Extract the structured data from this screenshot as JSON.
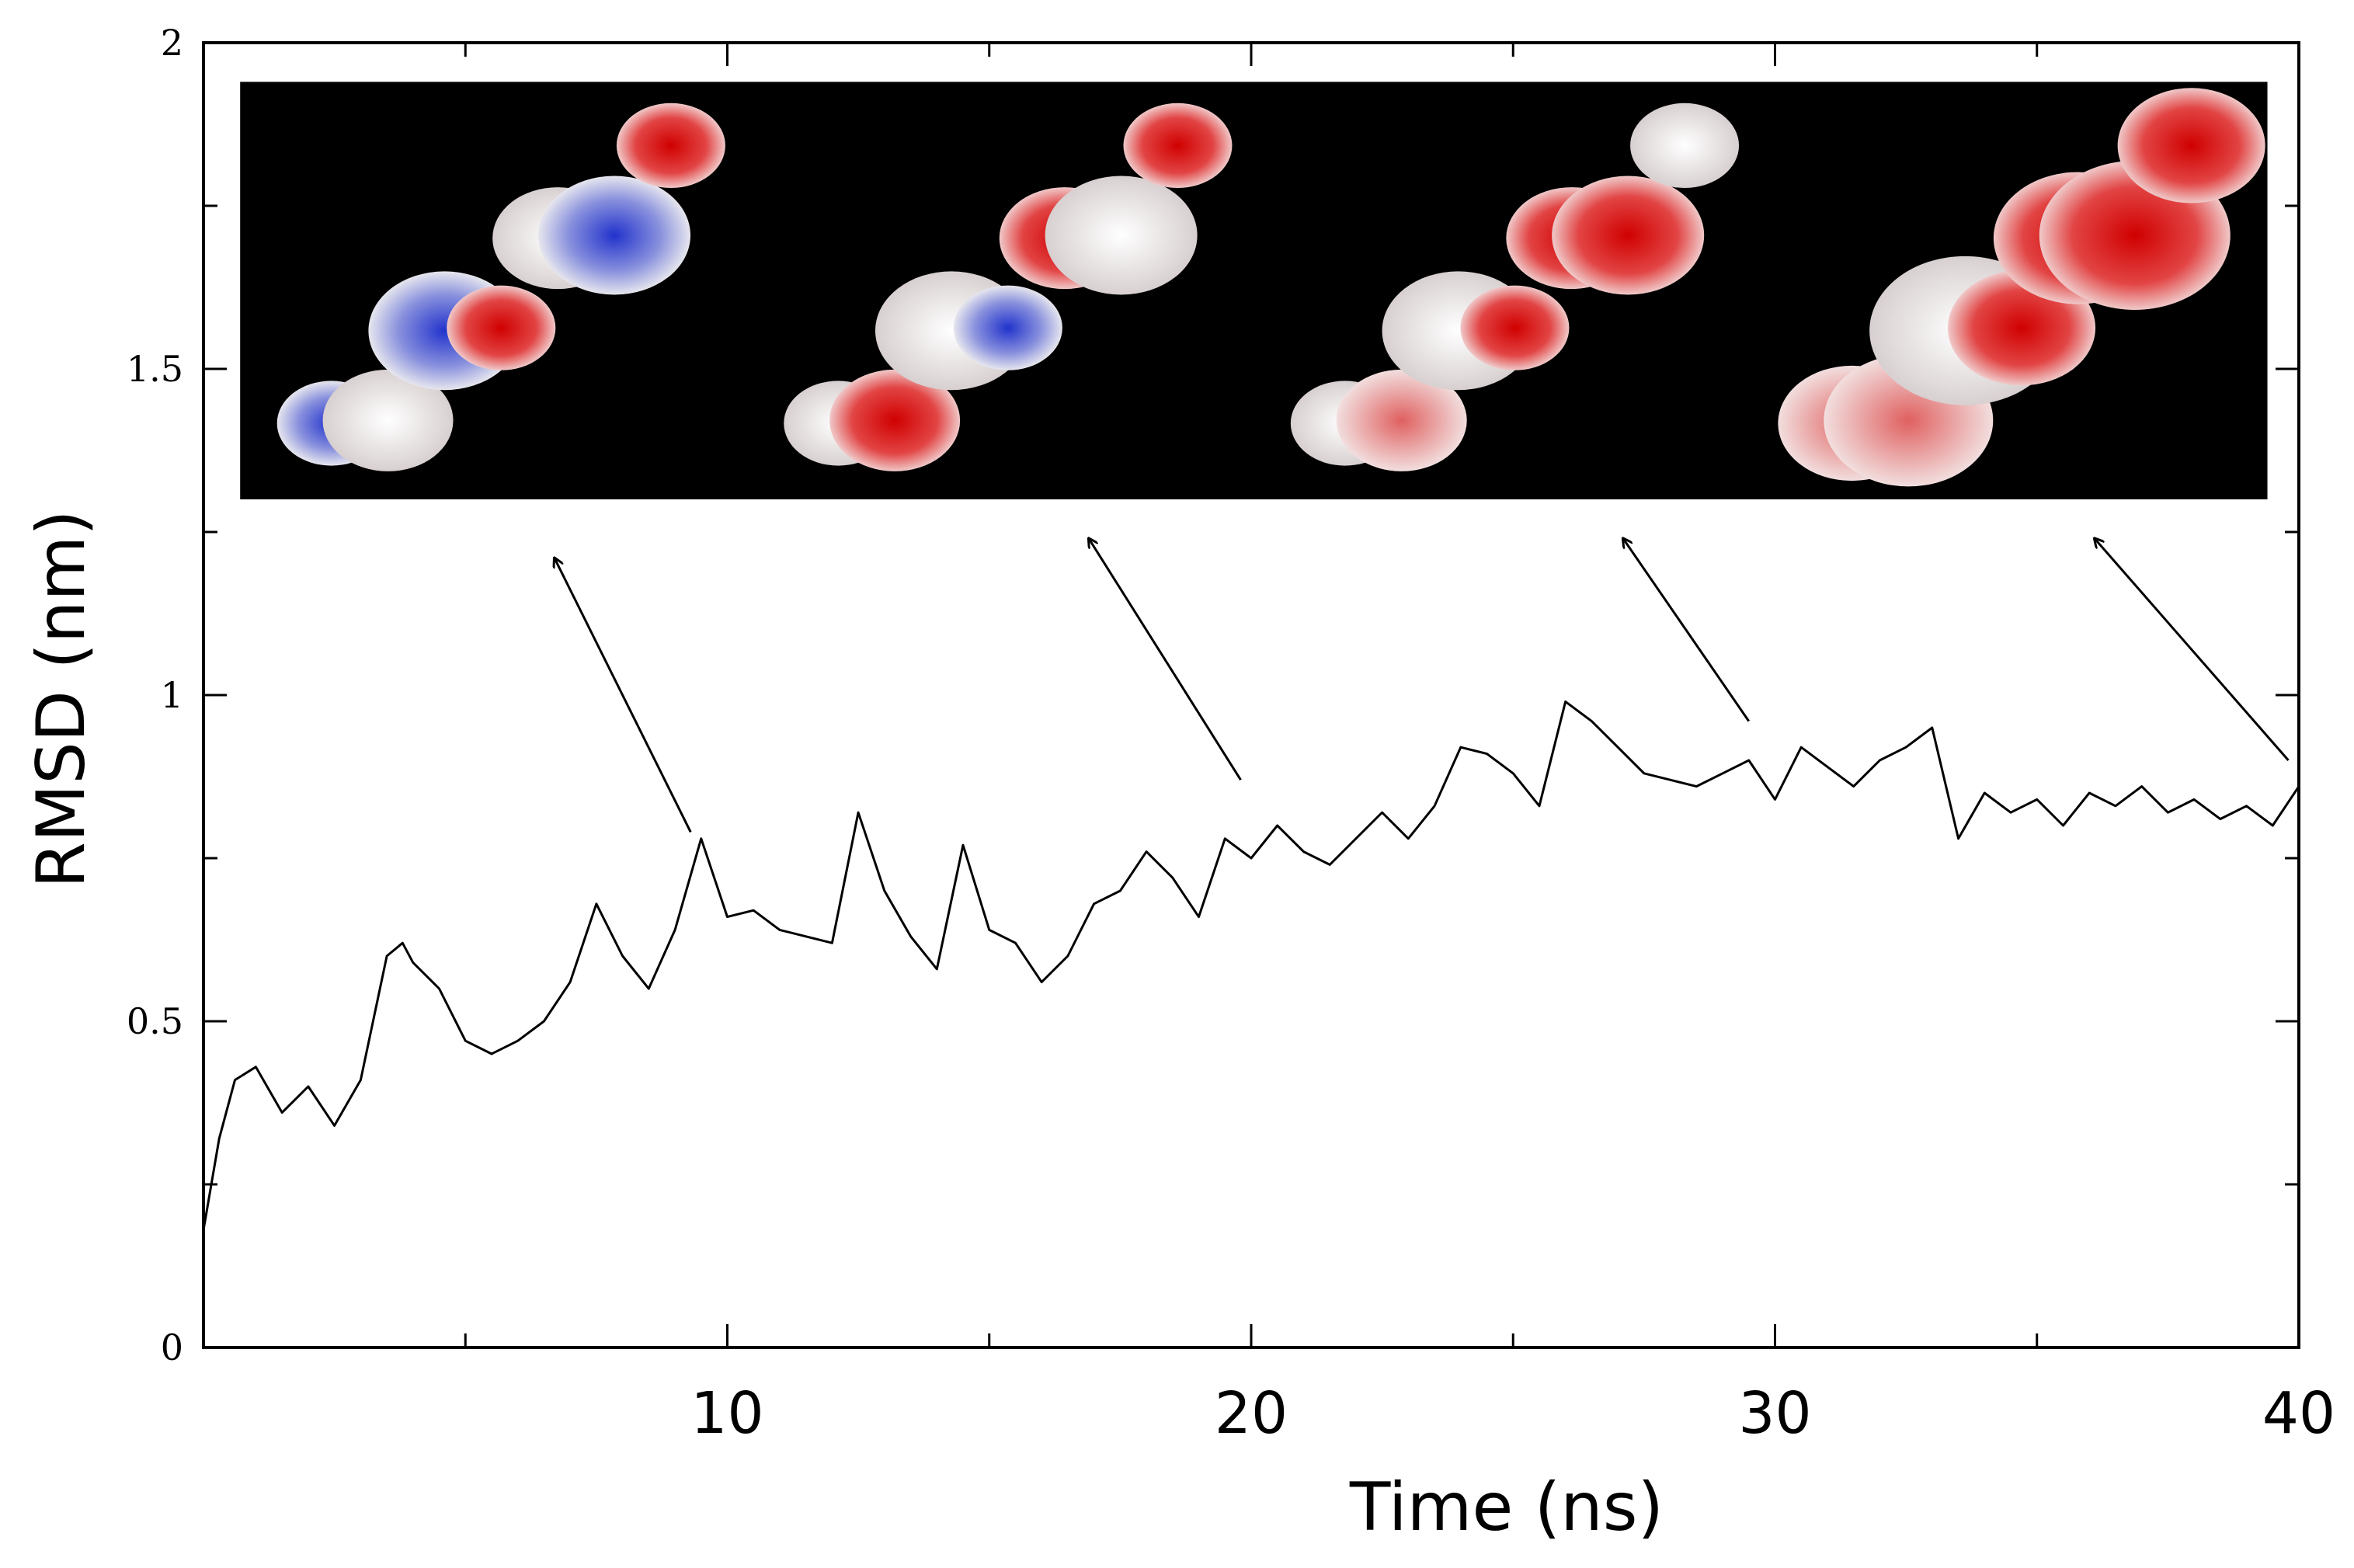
{
  "chart_data": {
    "type": "line",
    "title": "",
    "xlabel": "Time (ns)",
    "ylabel": "RMSD (nm)",
    "xlim": [
      0,
      40
    ],
    "ylim": [
      0,
      2
    ],
    "x_ticks": [
      10,
      20,
      30,
      40
    ],
    "y_ticks": [
      0,
      0.5,
      1,
      1.5,
      2
    ],
    "x_tick_labels": [
      "10",
      "20",
      "30",
      "40"
    ],
    "y_tick_labels": [
      "0",
      "0.5",
      "1",
      "1.5",
      "2"
    ],
    "grid": false,
    "legend": "none",
    "line_color": "#000000",
    "series": [
      {
        "x": [
          0,
          0.3,
          0.6,
          1,
          1.5,
          2,
          2.5,
          3,
          3.5,
          3.8,
          4,
          4.5,
          5,
          5.5,
          6,
          6.5,
          7,
          7.5,
          8,
          8.5,
          9,
          9.5,
          10,
          10.5,
          11,
          11.5,
          12,
          12.5,
          13,
          13.5,
          14,
          14.5,
          15,
          15.5,
          16,
          16.5,
          17,
          17.5,
          18,
          18.5,
          19,
          19.5,
          20,
          20.5,
          21,
          21.5,
          22,
          22.5,
          23,
          23.5,
          24,
          24.5,
          25,
          25.5,
          26,
          26.5,
          27,
          27.5,
          28,
          28.5,
          29,
          29.5,
          30,
          30.5,
          31,
          31.5,
          32,
          32.5,
          33,
          33.5,
          34,
          34.5,
          35,
          35.5,
          36,
          36.5,
          37,
          37.5,
          38,
          38.5,
          39,
          39.5,
          40
        ],
        "y": [
          0.18,
          0.32,
          0.41,
          0.43,
          0.36,
          0.4,
          0.34,
          0.41,
          0.6,
          0.62,
          0.59,
          0.55,
          0.47,
          0.45,
          0.47,
          0.5,
          0.56,
          0.68,
          0.6,
          0.55,
          0.64,
          0.78,
          0.66,
          0.67,
          0.64,
          0.63,
          0.62,
          0.82,
          0.7,
          0.63,
          0.58,
          0.77,
          0.64,
          0.62,
          0.56,
          0.6,
          0.68,
          0.7,
          0.76,
          0.72,
          0.66,
          0.78,
          0.75,
          0.8,
          0.76,
          0.74,
          0.78,
          0.82,
          0.78,
          0.83,
          0.92,
          0.91,
          0.88,
          0.83,
          0.99,
          0.96,
          0.92,
          0.88,
          0.87,
          0.86,
          0.88,
          0.9,
          0.84,
          0.92,
          0.89,
          0.86,
          0.9,
          0.92,
          0.95,
          0.78,
          0.85,
          0.82,
          0.84,
          0.8,
          0.85,
          0.83,
          0.86,
          0.82,
          0.84,
          0.81,
          0.83,
          0.8,
          0.86
        ]
      }
    ],
    "annotations": [
      {
        "from": [
          9.3,
          0.79
        ],
        "to": [
          6.7,
          1.21
        ]
      },
      {
        "from": [
          19.8,
          0.87
        ],
        "to": [
          16.9,
          1.24
        ]
      },
      {
        "from": [
          29.5,
          0.96
        ],
        "to": [
          27.1,
          1.24
        ]
      },
      {
        "from": [
          39.8,
          0.9
        ],
        "to": [
          36.1,
          1.24
        ]
      }
    ],
    "inset": {
      "background": "#000000",
      "x_range": [
        0.7,
        39.4
      ],
      "y_range": [
        1.3,
        1.94
      ],
      "structures": [
        "blue-dominant",
        "mixed-blue-red",
        "mixed-red",
        "red-dominant"
      ]
    }
  }
}
